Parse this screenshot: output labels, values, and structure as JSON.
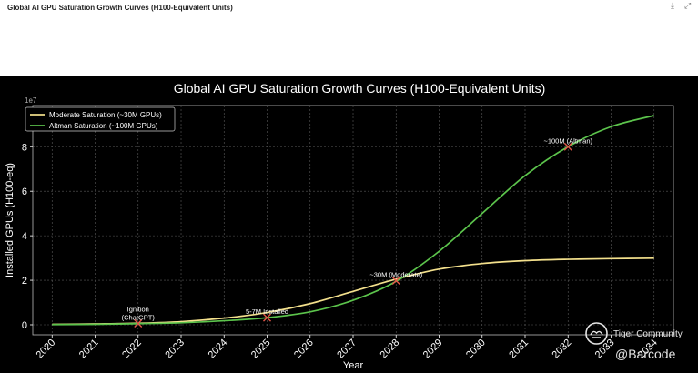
{
  "doc": {
    "title": "Global AI GPU Saturation Growth Curves (H100-Equivalent Units)",
    "download_icon": "download-icon",
    "expand_icon": "expand-icon"
  },
  "chart_data": {
    "type": "line",
    "title": "Global AI GPU Saturation Growth Curves (H100-Equivalent Units)",
    "xlabel": "Year",
    "ylabel": "Installed GPUs (H100-eq)",
    "y_scale_label": "1e7",
    "x_ticks": [
      "2020",
      "2021",
      "2022",
      "2023",
      "2024",
      "2025",
      "2026",
      "2027",
      "2028",
      "2029",
      "2030",
      "2031",
      "2032",
      "2033",
      "2034"
    ],
    "y_ticks": [
      0,
      2,
      4,
      6,
      8
    ],
    "xlim": [
      2019.55,
      2034.45
    ],
    "ylim": [
      -0.45,
      9.85
    ],
    "grid": true,
    "legend_position": "top-left",
    "colors": {
      "background": "#000000",
      "text": "#ffffff",
      "grid": "#5a5a5a",
      "moderate": "#f3e08c",
      "altman": "#5cc44c",
      "marker": "#e25548"
    },
    "series": [
      {
        "name": "Moderate Saturation (~30M GPUs)",
        "color": "#f3e08c",
        "x": [
          2020,
          2021,
          2022,
          2023,
          2024,
          2025,
          2026,
          2027,
          2028,
          2029,
          2030,
          2031,
          2032,
          2033,
          2034
        ],
        "y": [
          0.02,
          0.04,
          0.07,
          0.14,
          0.3,
          0.55,
          0.95,
          1.5,
          2.05,
          2.5,
          2.75,
          2.88,
          2.94,
          2.97,
          2.99
        ]
      },
      {
        "name": "Altman Saturation (~100M GPUs)",
        "color": "#5cc44c",
        "x": [
          2020,
          2021,
          2022,
          2023,
          2024,
          2025,
          2026,
          2027,
          2028,
          2029,
          2030,
          2031,
          2032,
          2033,
          2034
        ],
        "y": [
          0.01,
          0.02,
          0.05,
          0.09,
          0.18,
          0.32,
          0.58,
          1.1,
          1.95,
          3.3,
          5.0,
          6.7,
          8.0,
          8.9,
          9.4
        ]
      }
    ],
    "annotations": [
      {
        "label": "Ignition\n(ChatGPT)",
        "x": 2022,
        "y": 0.06
      },
      {
        "label": "5-7M Installed",
        "x": 2025,
        "y": 0.32
      },
      {
        "label": "~30M (Moderate)",
        "x": 2028,
        "y": 1.98
      },
      {
        "label": "~100M (Altman)",
        "x": 2032,
        "y": 8.0
      }
    ]
  },
  "watermark": {
    "community": "Tiger Community",
    "handle": "@Barcode"
  }
}
